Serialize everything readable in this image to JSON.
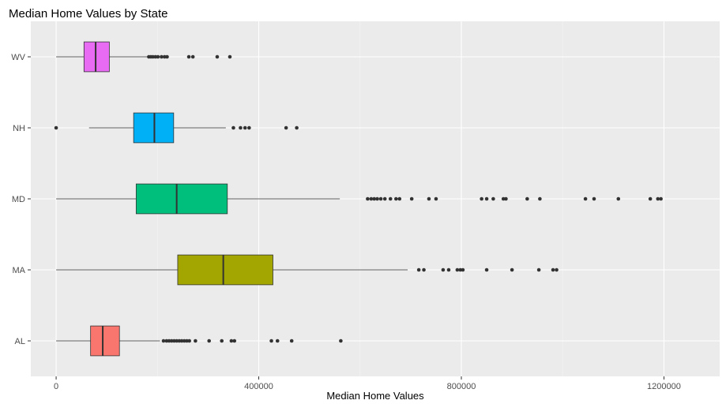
{
  "chart_data": {
    "type": "boxplot",
    "orientation": "horizontal",
    "title": "Median Home Values by State",
    "xlabel": "Median Home Values",
    "ylabel": "",
    "xlim": [
      -50000,
      1310000
    ],
    "xticks": [
      {
        "value": 0,
        "label": "0"
      },
      {
        "value": 400000,
        "label": "400000"
      },
      {
        "value": 800000,
        "label": "800000"
      },
      {
        "value": 1200000,
        "label": "1200000"
      }
    ],
    "grid": true,
    "legend": "none",
    "categories": [
      "WV",
      "NH",
      "MD",
      "MA",
      "AL"
    ],
    "boxes": [
      {
        "category": "WV",
        "color": "#E76BF3",
        "whisker_low": 0,
        "q1": 55000,
        "median": 78000,
        "q3": 105000,
        "whisker_high": 180000,
        "outliers": [
          183000,
          187000,
          191000,
          196000,
          201000,
          208000,
          214000,
          219000,
          262000,
          270000,
          318000,
          343000
        ]
      },
      {
        "category": "NH",
        "color": "#00B0F6",
        "whisker_low": 65000,
        "q1": 153000,
        "median": 194000,
        "q3": 232000,
        "whisker_high": 335000,
        "outliers": [
          0,
          350000,
          364000,
          373000,
          381000,
          454000,
          475000
        ]
      },
      {
        "category": "MD",
        "color": "#00BF7D",
        "whisker_low": 0,
        "q1": 158000,
        "median": 238000,
        "q3": 338000,
        "whisker_high": 560000,
        "outliers": [
          615000,
          622000,
          628000,
          634000,
          641000,
          649000,
          660000,
          671000,
          678000,
          702000,
          736000,
          750000,
          840000,
          850000,
          863000,
          883000,
          888000,
          930000,
          955000,
          1045000,
          1062000,
          1110000,
          1173000,
          1188000,
          1194000
        ]
      },
      {
        "category": "MA",
        "color": "#A3A500",
        "whisker_low": 0,
        "q1": 240000,
        "median": 330000,
        "q3": 428000,
        "whisker_high": 694000,
        "outliers": [
          716000,
          726000,
          764000,
          775000,
          792000,
          798000,
          803000,
          850000,
          900000,
          953000,
          981000,
          988000
        ]
      },
      {
        "category": "AL",
        "color": "#F8766D",
        "whisker_low": 0,
        "q1": 68000,
        "median": 92000,
        "q3": 125000,
        "whisker_high": 205000,
        "outliers": [
          212000,
          218000,
          223000,
          228000,
          233000,
          238000,
          243000,
          248000,
          253000,
          258000,
          263000,
          275000,
          302000,
          327000,
          346000,
          352000,
          425000,
          437000,
          465000,
          562000
        ]
      }
    ]
  }
}
